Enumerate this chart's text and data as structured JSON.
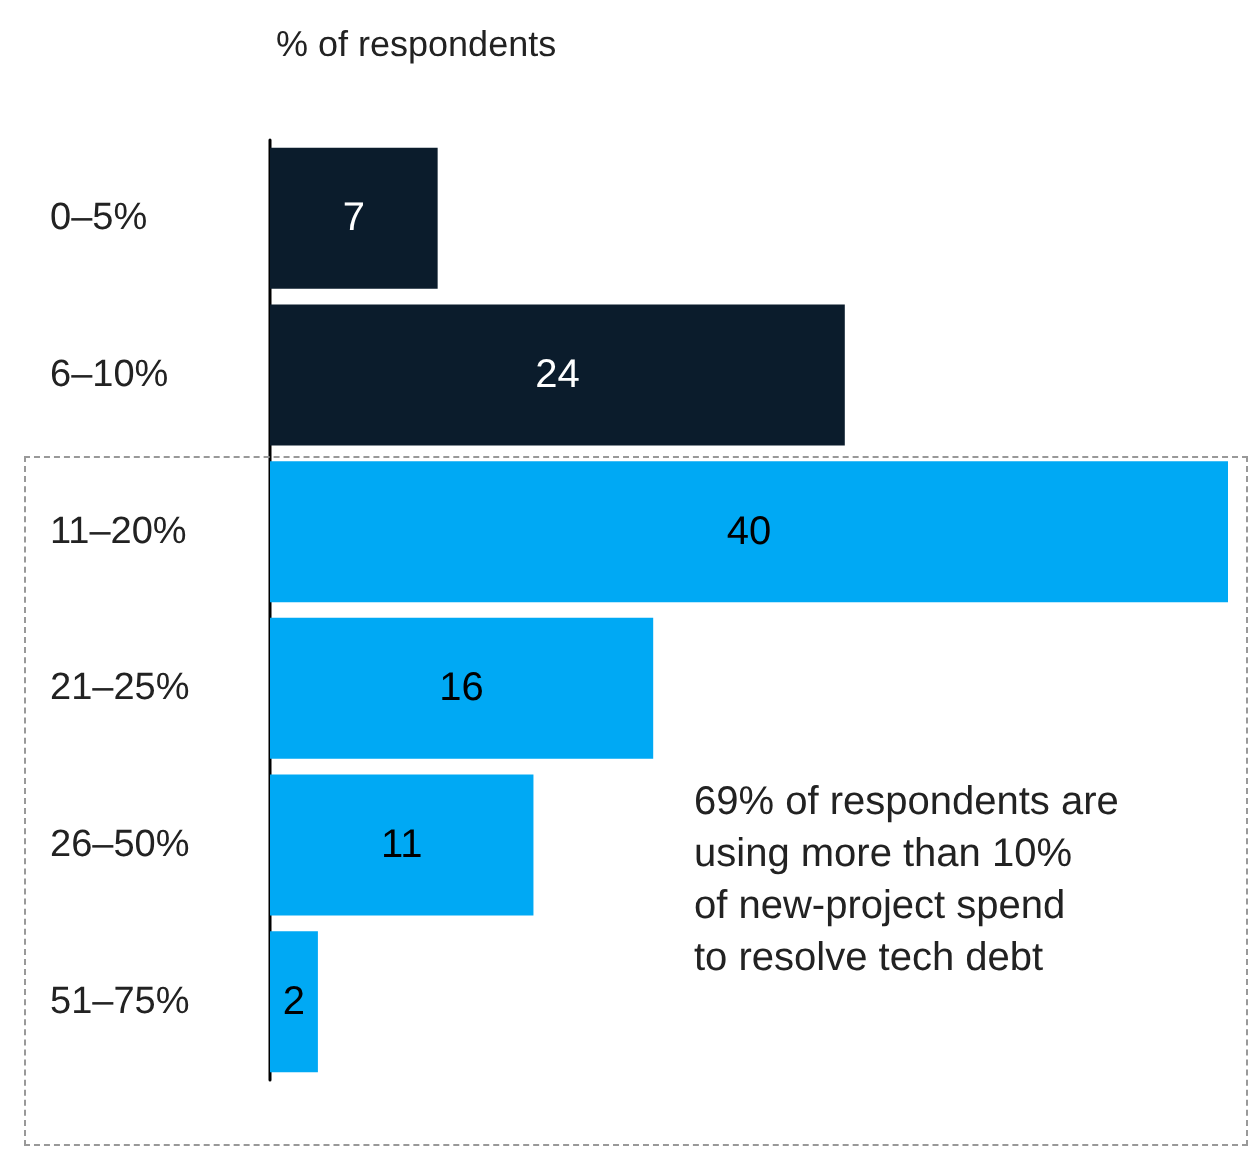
{
  "chart_data": {
    "type": "bar",
    "orientation": "horizontal",
    "xlabel": "% of respondents",
    "categories": [
      "0–5%",
      "6–10%",
      "11–20%",
      "21–25%",
      "26–50%",
      "51–75%"
    ],
    "values": [
      7,
      24,
      40,
      16,
      11,
      2
    ],
    "colors": [
      "#0b1c2c",
      "#0b1c2c",
      "#00a9f4",
      "#00a9f4",
      "#00a9f4",
      "#00a9f4"
    ],
    "data_labels": true,
    "annotations": [
      "69% of respondents are\nusing more than 10%\nof new-project spend\nto resolve tech debt"
    ]
  }
}
